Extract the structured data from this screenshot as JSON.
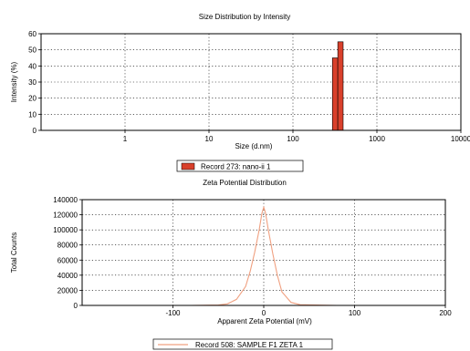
{
  "chart_data": [
    {
      "type": "bar",
      "title": "Size Distribution by Intensity",
      "xlabel": "Size (d.nm)",
      "ylabel": "Intensity (%)",
      "xscale": "log",
      "xlim": [
        0.1,
        10000
      ],
      "ylim": [
        0,
        60
      ],
      "x_ticks": [
        "1",
        "10",
        "100",
        "1000",
        "10000"
      ],
      "y_ticks": [
        "0",
        "10",
        "20",
        "30",
        "40",
        "50",
        "60"
      ],
      "grid": true,
      "bar_color": "#d9402b",
      "series": [
        {
          "name": "Record 273: nano-ii 1",
          "bars": [
            {
              "x_from": 295,
              "x_to": 342,
              "value": 45
            },
            {
              "x_from": 342,
              "x_to": 396,
              "value": 55
            }
          ]
        }
      ],
      "legend": {
        "position": "bottom",
        "label": "Record 273: nano-ii 1"
      }
    },
    {
      "type": "line",
      "title": "Zeta Potential Distribution",
      "xlabel": "Apparent Zeta Potential (mV)",
      "ylabel": "Total Counts",
      "xlim": [
        -200,
        200
      ],
      "ylim": [
        0,
        140000
      ],
      "x_ticks": [
        "-100",
        "0",
        "100",
        "200"
      ],
      "y_ticks": [
        "0",
        "20000",
        "40000",
        "60000",
        "80000",
        "100000",
        "120000",
        "140000"
      ],
      "grid": true,
      "line_color": "#f0a080",
      "series": [
        {
          "name": "Record 508: SAMPLE F1 ZETA 1",
          "x": [
            -150,
            -80,
            -50,
            -40,
            -30,
            -20,
            -15,
            -10,
            -5,
            -2,
            0,
            2,
            5,
            10,
            15,
            20,
            30,
            40,
            80,
            150
          ],
          "y": [
            0,
            0,
            500,
            2000,
            8000,
            25000,
            45000,
            70000,
            100000,
            122000,
            130000,
            122000,
            100000,
            68000,
            40000,
            18000,
            4000,
            1000,
            0,
            0
          ]
        }
      ],
      "legend": {
        "position": "bottom",
        "label": "Record 508: SAMPLE F1 ZETA 1"
      }
    }
  ]
}
